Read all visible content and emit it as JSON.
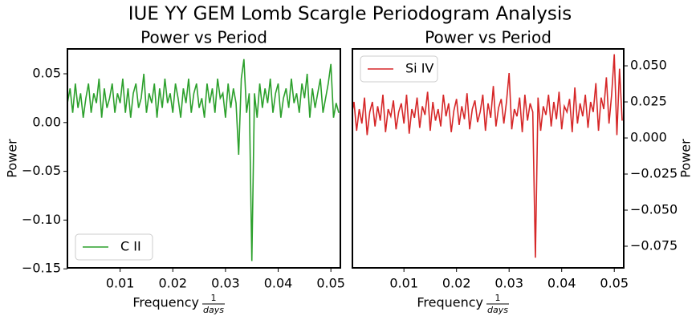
{
  "title": "IUE YY GEM Lomb Scargle Periodogram Analysis",
  "chart_data": [
    {
      "type": "line",
      "title": "Power vs Period",
      "xlabel": {
        "text": "Frequency",
        "fraction": [
          "1",
          "days"
        ]
      },
      "ylabel": "Power",
      "y_axis_side": "left",
      "legend": "lower left",
      "xlim": [
        0,
        0.0518
      ],
      "ylim": [
        -0.149,
        0.0755
      ],
      "xticks": [
        0.01,
        0.02,
        0.03,
        0.04,
        0.05
      ],
      "yticks": [
        {
          "value": -0.15,
          "label": "−0.15"
        },
        {
          "value": -0.1,
          "label": "−0.10"
        },
        {
          "value": -0.05,
          "label": "−0.05"
        },
        {
          "value": 0,
          "label": "0.00"
        },
        0.05
      ],
      "x": [
        0,
        0.0005,
        0.001,
        0.0015,
        0.002,
        0.0025,
        0.003,
        0.0035,
        0.004,
        0.0045,
        0.005,
        0.0055,
        0.006,
        0.0065,
        0.007,
        0.0075,
        0.008,
        0.0085,
        0.009,
        0.0095,
        0.01,
        0.0105,
        0.011,
        0.0115,
        0.012,
        0.0125,
        0.013,
        0.0135,
        0.014,
        0.0145,
        0.015,
        0.0155,
        0.016,
        0.0165,
        0.017,
        0.0175,
        0.018,
        0.0185,
        0.019,
        0.0195,
        0.02,
        0.0205,
        0.021,
        0.0215,
        0.022,
        0.0225,
        0.023,
        0.0235,
        0.024,
        0.0245,
        0.025,
        0.0255,
        0.026,
        0.0265,
        0.027,
        0.0275,
        0.028,
        0.0285,
        0.029,
        0.0295,
        0.03,
        0.0305,
        0.031,
        0.0315,
        0.032,
        0.0325,
        0.033,
        0.0335,
        0.034,
        0.0345,
        0.035,
        0.0355,
        0.036,
        0.0365,
        0.037,
        0.0375,
        0.038,
        0.0385,
        0.039,
        0.0395,
        0.04,
        0.0405,
        0.041,
        0.0415,
        0.042,
        0.0425,
        0.043,
        0.0435,
        0.044,
        0.0445,
        0.045,
        0.0455,
        0.046,
        0.0465,
        0.047,
        0.0475,
        0.048,
        0.0485,
        0.049,
        0.0495,
        0.05,
        0.0505,
        0.051,
        0.0515
      ],
      "series": [
        {
          "name": "C II",
          "color": "#2ca02c",
          "values": [
            0.02,
            0.035,
            0.01,
            0.04,
            0.015,
            0.03,
            0.005,
            0.025,
            0.04,
            0.01,
            0.03,
            0.02,
            0.045,
            0.005,
            0.035,
            0.015,
            0.025,
            0.04,
            0.01,
            0.03,
            0.02,
            0.045,
            0.01,
            0.035,
            0.005,
            0.03,
            0.04,
            0.015,
            0.025,
            0.05,
            0.01,
            0.03,
            0.02,
            0.04,
            0.005,
            0.035,
            0.015,
            0.045,
            0.02,
            0.03,
            0.01,
            0.04,
            0.025,
            0.005,
            0.035,
            0.02,
            0.045,
            0.01,
            0.03,
            0.04,
            0.015,
            0.025,
            0.005,
            0.04,
            0.02,
            0.035,
            0.01,
            0.045,
            0.025,
            0.03,
            0.005,
            0.04,
            0.015,
            0.035,
            0.02,
            -0.033,
            0.045,
            0.065,
            0.01,
            0.03,
            -0.142,
            0.03,
            0.005,
            0.04,
            0.015,
            0.035,
            0.02,
            0.045,
            0.01,
            0.03,
            0.04,
            0.005,
            0.025,
            0.035,
            0.015,
            0.045,
            0.02,
            0.03,
            0.01,
            0.04,
            0.025,
            0.05,
            0.005,
            0.035,
            0.015,
            0.03,
            0.045,
            0.01,
            0.025,
            0.04,
            0.06,
            0.005,
            0.02,
            0.01
          ]
        }
      ]
    },
    {
      "type": "line",
      "title": "Power vs Period",
      "xlabel": {
        "text": "Frequency",
        "fraction": [
          "1",
          "days"
        ]
      },
      "ylabel": "Power",
      "y_axis_side": "right",
      "legend": "upper left",
      "xlim": [
        0.0002,
        0.0518
      ],
      "ylim": [
        -0.09,
        0.0617
      ],
      "xticks": [
        0.01,
        0.02,
        0.03,
        0.04,
        0.05
      ],
      "yticks": [
        {
          "value": -0.075,
          "label": "−0.075"
        },
        {
          "value": -0.05,
          "label": "−0.050"
        },
        {
          "value": -0.025,
          "label": "−0.025"
        },
        {
          "value": 0,
          "label": "0.000"
        },
        0.025,
        {
          "value": 0.05,
          "label": "0.050"
        }
      ],
      "x": [
        0,
        0.0005,
        0.001,
        0.0015,
        0.002,
        0.0025,
        0.003,
        0.0035,
        0.004,
        0.0045,
        0.005,
        0.0055,
        0.006,
        0.0065,
        0.007,
        0.0075,
        0.008,
        0.0085,
        0.009,
        0.0095,
        0.01,
        0.0105,
        0.011,
        0.0115,
        0.012,
        0.0125,
        0.013,
        0.0135,
        0.014,
        0.0145,
        0.015,
        0.0155,
        0.016,
        0.0165,
        0.017,
        0.0175,
        0.018,
        0.0185,
        0.019,
        0.0195,
        0.02,
        0.0205,
        0.021,
        0.0215,
        0.022,
        0.0225,
        0.023,
        0.0235,
        0.024,
        0.0245,
        0.025,
        0.0255,
        0.026,
        0.0265,
        0.027,
        0.0275,
        0.028,
        0.0285,
        0.029,
        0.0295,
        0.03,
        0.0305,
        0.031,
        0.0315,
        0.032,
        0.0325,
        0.033,
        0.0335,
        0.034,
        0.0345,
        0.035,
        0.0355,
        0.036,
        0.0365,
        0.037,
        0.0375,
        0.038,
        0.0385,
        0.039,
        0.0395,
        0.04,
        0.0405,
        0.041,
        0.0415,
        0.042,
        0.0425,
        0.043,
        0.0435,
        0.044,
        0.0445,
        0.045,
        0.0455,
        0.046,
        0.0465,
        0.047,
        0.0475,
        0.048,
        0.0485,
        0.049,
        0.0495,
        0.05,
        0.0505,
        0.051,
        0.0515
      ],
      "series": [
        {
          "name": "Si IV",
          "color": "#d62728",
          "values": [
            0.015,
            0.025,
            0.005,
            0.02,
            0.01,
            0.028,
            0.002,
            0.018,
            0.025,
            0.008,
            0.022,
            0.012,
            0.03,
            0.004,
            0.02,
            0.015,
            0.026,
            0.006,
            0.018,
            0.024,
            0.01,
            0.03,
            0.003,
            0.02,
            0.014,
            0.028,
            0.007,
            0.022,
            0.016,
            0.032,
            0.005,
            0.025,
            0.012,
            0.02,
            0.008,
            0.03,
            0.015,
            0.024,
            0.004,
            0.019,
            0.027,
            0.009,
            0.022,
            0.013,
            0.031,
            0.006,
            0.02,
            0.026,
            0.011,
            0.018,
            0.03,
            0.005,
            0.024,
            0.014,
            0.036,
            0.008,
            0.021,
            0.027,
            0.01,
            0.025,
            0.045,
            0.006,
            0.02,
            0.015,
            0.028,
            0.004,
            0.03,
            0.012,
            0.024,
            0.018,
            -0.083,
            0.028,
            0.005,
            0.022,
            0.016,
            0.03,
            0.008,
            0.025,
            0.013,
            0.032,
            0.006,
            0.022,
            0.018,
            0.027,
            0.004,
            0.035,
            0.01,
            0.024,
            0.015,
            0.03,
            0.007,
            0.025,
            0.018,
            0.038,
            0.005,
            0.028,
            0.02,
            0.042,
            0.01,
            0.03,
            0.058,
            0.002,
            0.048,
            0.012
          ]
        }
      ]
    }
  ]
}
